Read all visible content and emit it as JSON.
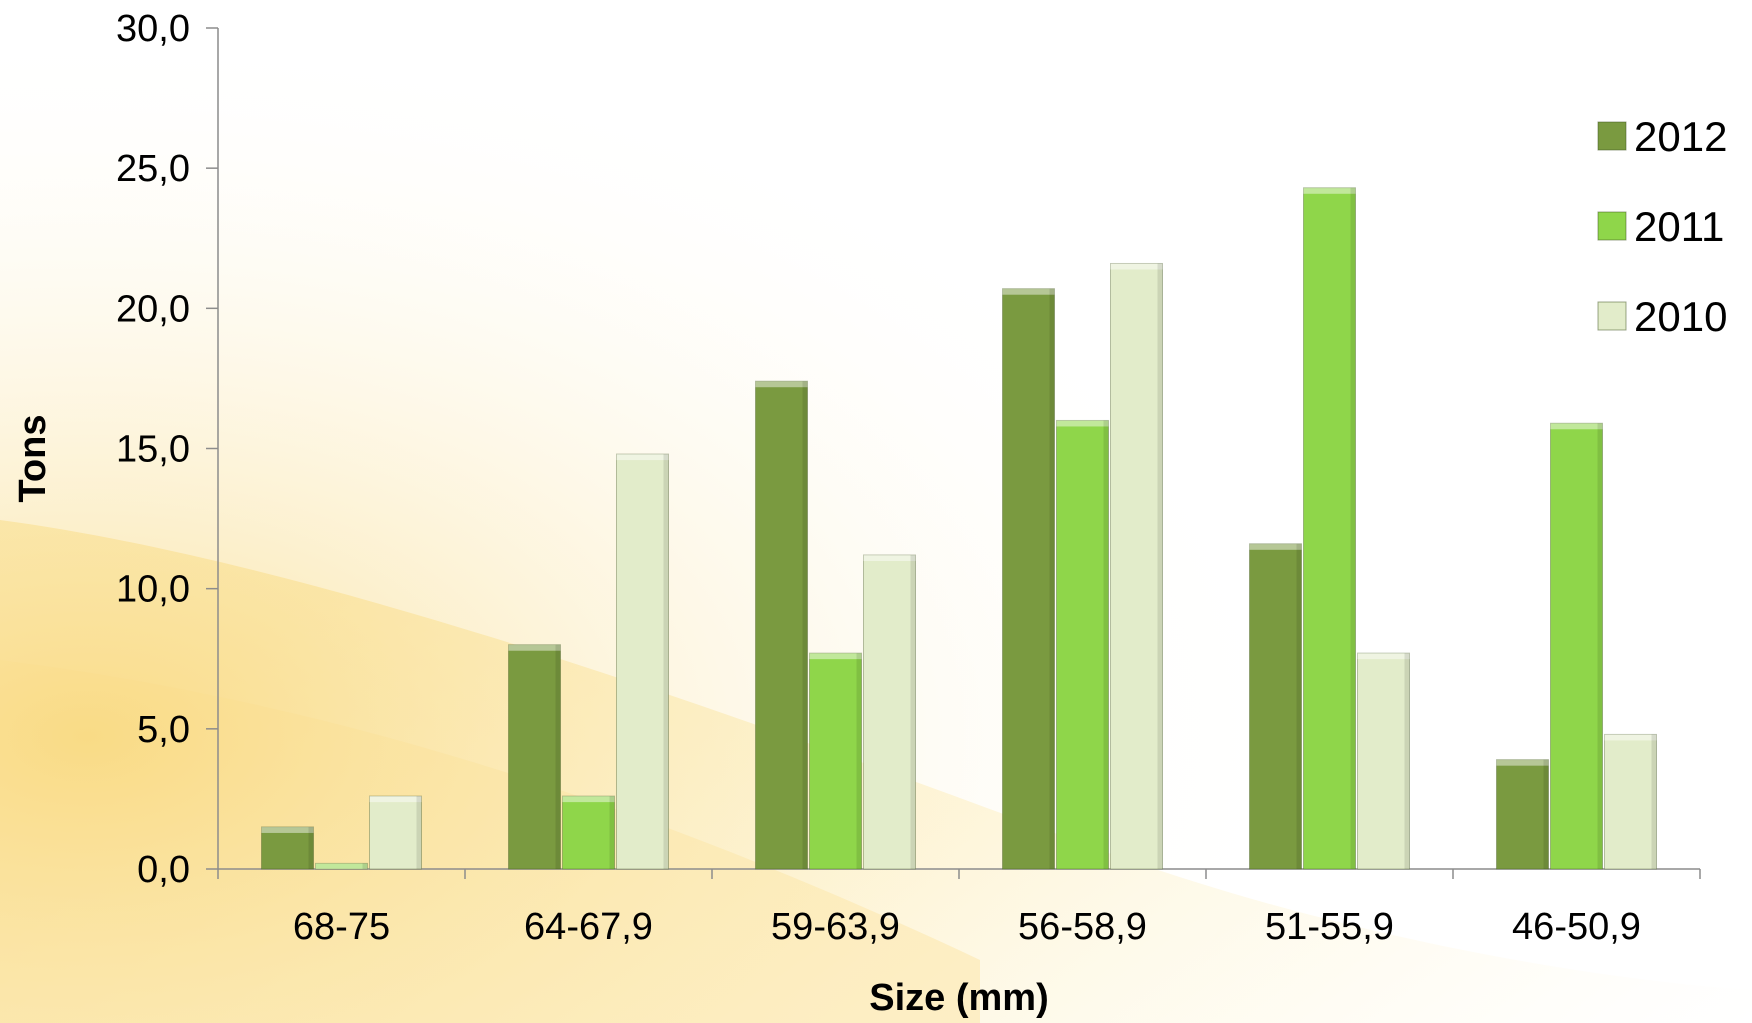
{
  "chart_data": {
    "type": "bar",
    "title": "",
    "xlabel": "Size (mm)",
    "ylabel": "Tons",
    "categories": [
      "68-75",
      "64-67,9",
      "59-63,9",
      "56-58,9",
      "51-55,9",
      "46-50,9"
    ],
    "series": [
      {
        "name": "2012",
        "values": [
          1.5,
          8.0,
          17.4,
          20.7,
          11.6,
          3.9
        ],
        "color": "#7a9a40"
      },
      {
        "name": "2011",
        "values": [
          0.2,
          2.6,
          7.7,
          16.0,
          24.3,
          15.9
        ],
        "color": "#8fd64a"
      },
      {
        "name": "2010",
        "values": [
          2.6,
          14.8,
          11.2,
          21.6,
          7.7,
          4.8
        ],
        "color": "#e2ecca"
      }
    ],
    "ylim": [
      0,
      30
    ],
    "yticks": [
      "0,0",
      "5,0",
      "10,0",
      "15,0",
      "20,0",
      "25,0",
      "30,0"
    ],
    "ytick_values": [
      0,
      5,
      10,
      15,
      20,
      25,
      30
    ],
    "legend_position": "right",
    "grid": false
  }
}
